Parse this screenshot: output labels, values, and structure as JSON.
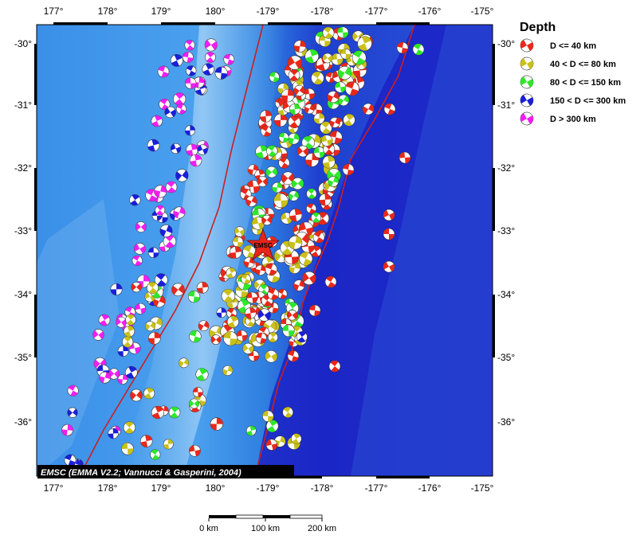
{
  "map": {
    "type": "focal-mechanism-map",
    "lon_ticks": [
      "177°",
      "178°",
      "179°",
      "180°",
      "-179°",
      "-178°",
      "-177°",
      "-176°",
      "-175°"
    ],
    "lat_ticks": [
      "-30°",
      "-31°",
      "-32°",
      "-33°",
      "-34°",
      "-35°",
      "-36°"
    ],
    "credit": "EMSC (EMMA V2.2; Vannucci & Gasperini, 2004)",
    "epicenter_label": "EMSC",
    "colors": {
      "ocean_deep": "#1a1fc8",
      "ocean_shallow": "#3a8ee6",
      "ridge_light": "#9cc8f2",
      "trench_line": "#cc1f1f",
      "epicenter_star": "#e8241a"
    }
  },
  "legend": {
    "title": "Depth",
    "items": [
      {
        "label": "D <= 40 km",
        "color": "#e8281a"
      },
      {
        "label": "40 < D <= 80 km",
        "color": "#c9c01a"
      },
      {
        "label": "80 < D <= 150 km",
        "color": "#2ee82a"
      },
      {
        "label": "150 < D <= 300 km",
        "color": "#1a1fd8"
      },
      {
        "label": "D > 300 km",
        "color": "#f01ef0"
      }
    ]
  },
  "scale_bar": {
    "labels": [
      "0 km",
      "100 km",
      "200 km"
    ]
  }
}
